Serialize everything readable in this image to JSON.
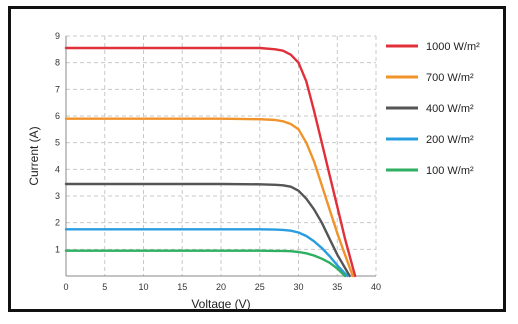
{
  "chart_data": {
    "type": "line",
    "xlabel": "Voltage (V)",
    "ylabel": "Current (A)",
    "xlim": [
      0,
      40
    ],
    "ylim": [
      0,
      9
    ],
    "xticks": [
      0,
      5,
      10,
      15,
      20,
      25,
      30,
      35,
      40
    ],
    "yticks": [
      1,
      2,
      3,
      4,
      5,
      6,
      7,
      8,
      9
    ],
    "grid": true,
    "legend_position": "right",
    "series": [
      {
        "name": "1000 W/m²",
        "color": "#e0303a",
        "x": [
          0,
          5,
          10,
          15,
          20,
          25,
          27,
          28,
          29,
          30,
          31,
          32,
          33,
          34,
          35,
          36,
          37.3
        ],
        "y": [
          8.55,
          8.55,
          8.55,
          8.55,
          8.55,
          8.55,
          8.5,
          8.45,
          8.3,
          8.0,
          7.3,
          6.2,
          5.0,
          3.8,
          2.6,
          1.4,
          0
        ]
      },
      {
        "name": "700 W/m²",
        "color": "#f0932b",
        "x": [
          0,
          5,
          10,
          15,
          20,
          25,
          27,
          28,
          29,
          30,
          31,
          32,
          33,
          34,
          35,
          36,
          37.0
        ],
        "y": [
          5.9,
          5.9,
          5.9,
          5.9,
          5.9,
          5.88,
          5.85,
          5.8,
          5.7,
          5.5,
          5.0,
          4.3,
          3.4,
          2.5,
          1.6,
          0.8,
          0
        ]
      },
      {
        "name": "400 W/m²",
        "color": "#555555",
        "x": [
          0,
          5,
          10,
          15,
          20,
          25,
          27,
          28,
          29,
          30,
          31,
          32,
          33,
          34,
          35,
          36.6
        ],
        "y": [
          3.45,
          3.45,
          3.45,
          3.45,
          3.45,
          3.44,
          3.42,
          3.4,
          3.35,
          3.2,
          2.9,
          2.5,
          2.0,
          1.4,
          0.8,
          0
        ]
      },
      {
        "name": "200 W/m²",
        "color": "#2a9de0",
        "x": [
          0,
          5,
          10,
          15,
          20,
          25,
          27,
          28,
          29,
          30,
          31,
          32,
          33,
          34,
          35,
          36.3
        ],
        "y": [
          1.75,
          1.75,
          1.75,
          1.75,
          1.75,
          1.75,
          1.74,
          1.73,
          1.7,
          1.63,
          1.5,
          1.3,
          1.05,
          0.75,
          0.4,
          0
        ]
      },
      {
        "name": "100 W/m²",
        "color": "#2eaf62",
        "x": [
          0,
          5,
          10,
          15,
          20,
          25,
          27,
          28,
          29,
          30,
          31,
          32,
          33,
          34,
          35,
          36.0
        ],
        "y": [
          0.95,
          0.95,
          0.95,
          0.95,
          0.95,
          0.95,
          0.94,
          0.94,
          0.93,
          0.9,
          0.85,
          0.77,
          0.65,
          0.5,
          0.28,
          0
        ]
      }
    ]
  }
}
